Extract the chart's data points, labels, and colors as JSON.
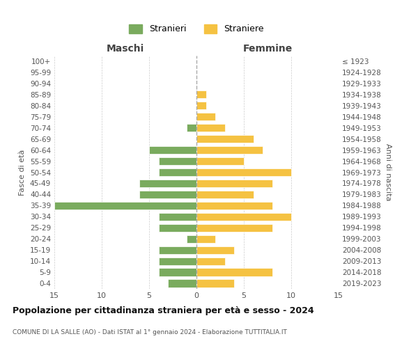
{
  "age_groups": [
    "100+",
    "95-99",
    "90-94",
    "85-89",
    "80-84",
    "75-79",
    "70-74",
    "65-69",
    "60-64",
    "55-59",
    "50-54",
    "45-49",
    "40-44",
    "35-39",
    "30-34",
    "25-29",
    "20-24",
    "15-19",
    "10-14",
    "5-9",
    "0-4"
  ],
  "birth_years": [
    "≤ 1923",
    "1924-1928",
    "1929-1933",
    "1934-1938",
    "1939-1943",
    "1944-1948",
    "1949-1953",
    "1954-1958",
    "1959-1963",
    "1964-1968",
    "1969-1973",
    "1974-1978",
    "1979-1983",
    "1984-1988",
    "1989-1993",
    "1994-1998",
    "1999-2003",
    "2004-2008",
    "2009-2013",
    "2014-2018",
    "2019-2023"
  ],
  "maschi": [
    0,
    0,
    0,
    0,
    0,
    0,
    1,
    0,
    5,
    4,
    4,
    6,
    6,
    15,
    4,
    4,
    1,
    4,
    4,
    4,
    3
  ],
  "femmine": [
    0,
    0,
    0,
    1,
    1,
    2,
    3,
    6,
    7,
    5,
    10,
    8,
    6,
    8,
    10,
    8,
    2,
    4,
    3,
    8,
    4
  ],
  "maschi_color": "#7aab5e",
  "femmine_color": "#f5c242",
  "title": "Popolazione per cittadinanza straniera per età e sesso - 2024",
  "subtitle": "COMUNE DI LA SALLE (AO) - Dati ISTAT al 1° gennaio 2024 - Elaborazione TUTTITALIA.IT",
  "xlabel_left": "Maschi",
  "xlabel_right": "Femmine",
  "ylabel_left": "Fasce di età",
  "ylabel_right": "Anni di nascita",
  "legend_maschi": "Stranieri",
  "legend_femmine": "Straniere",
  "xlim": 15,
  "background_color": "#ffffff",
  "grid_color": "#cccccc"
}
